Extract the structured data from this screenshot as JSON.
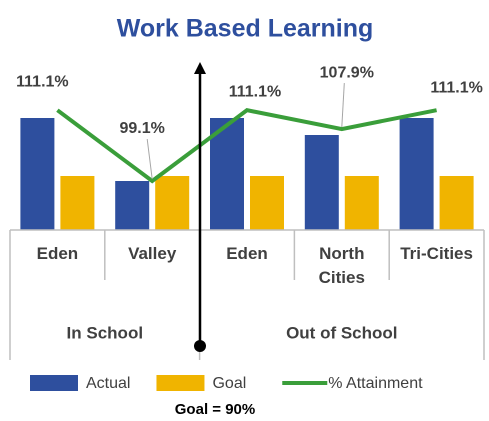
{
  "chart_data": {
    "type": "bar+line",
    "title": "Work Based Learning",
    "categories": [
      "Eden",
      "Valley",
      "Eden",
      "North Cities",
      "Tri-Cities"
    ],
    "groups": [
      {
        "label": "In School",
        "span": 2
      },
      {
        "label": "Out of School",
        "span": 3
      }
    ],
    "ylim": [
      0,
      180
    ],
    "y2lim": [
      90.8,
      121.3
    ],
    "series": [
      {
        "name": "Actual",
        "type": "bar",
        "color": "#2e4f9e",
        "values": [
          112,
          49,
          112,
          95,
          112
        ]
      },
      {
        "name": "Goal",
        "type": "bar",
        "color": "#f0b400",
        "values": [
          54,
          54,
          54,
          54,
          54
        ]
      },
      {
        "name": "% Attainment",
        "type": "line",
        "axis": "y2",
        "color": "#3a9e3a",
        "values": [
          111.1,
          99.1,
          111.1,
          107.9,
          111.1
        ],
        "value_labels": [
          "111.1%",
          "99.1%",
          "111.1%",
          "107.9%",
          "111.1%"
        ]
      }
    ],
    "annotation": "Goal = 90%",
    "legend": "bottom"
  }
}
